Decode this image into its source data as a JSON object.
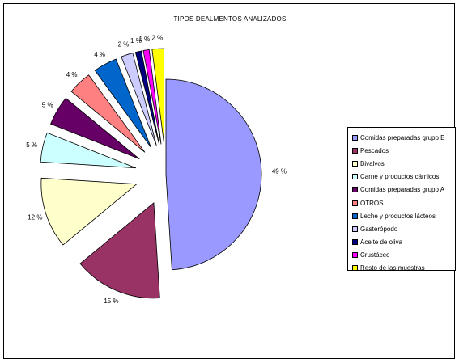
{
  "chart_data": {
    "type": "pie",
    "title": "TIPOS DEALMENTOS ANALIZADOS",
    "legend_position": "right",
    "categories": [
      "Comidas preparadas grupo B",
      "Pescados",
      "Bivalvos",
      "Carne y productos cárnicos",
      "Comidas preparadas grupo A",
      "OTROS",
      "Leche y productos lácteos",
      "Gasterópodo",
      "Aceite de oliva",
      "Crustáceo",
      "Resto de las muestras"
    ],
    "values": [
      49,
      15,
      12,
      5,
      5,
      4,
      4,
      2,
      1,
      1,
      2
    ],
    "labels": [
      "49 %",
      "15 %",
      "12 %",
      "5 %",
      "5 %",
      "4 %",
      "4 %",
      "2 %",
      "1 %",
      "1 %",
      "2 %"
    ],
    "colors": [
      "#9999FF",
      "#993366",
      "#FFFFCC",
      "#CCFFFF",
      "#660066",
      "#FF8080",
      "#0066CC",
      "#CCCCFF",
      "#000080",
      "#FF00FF",
      "#FFFF00"
    ]
  }
}
